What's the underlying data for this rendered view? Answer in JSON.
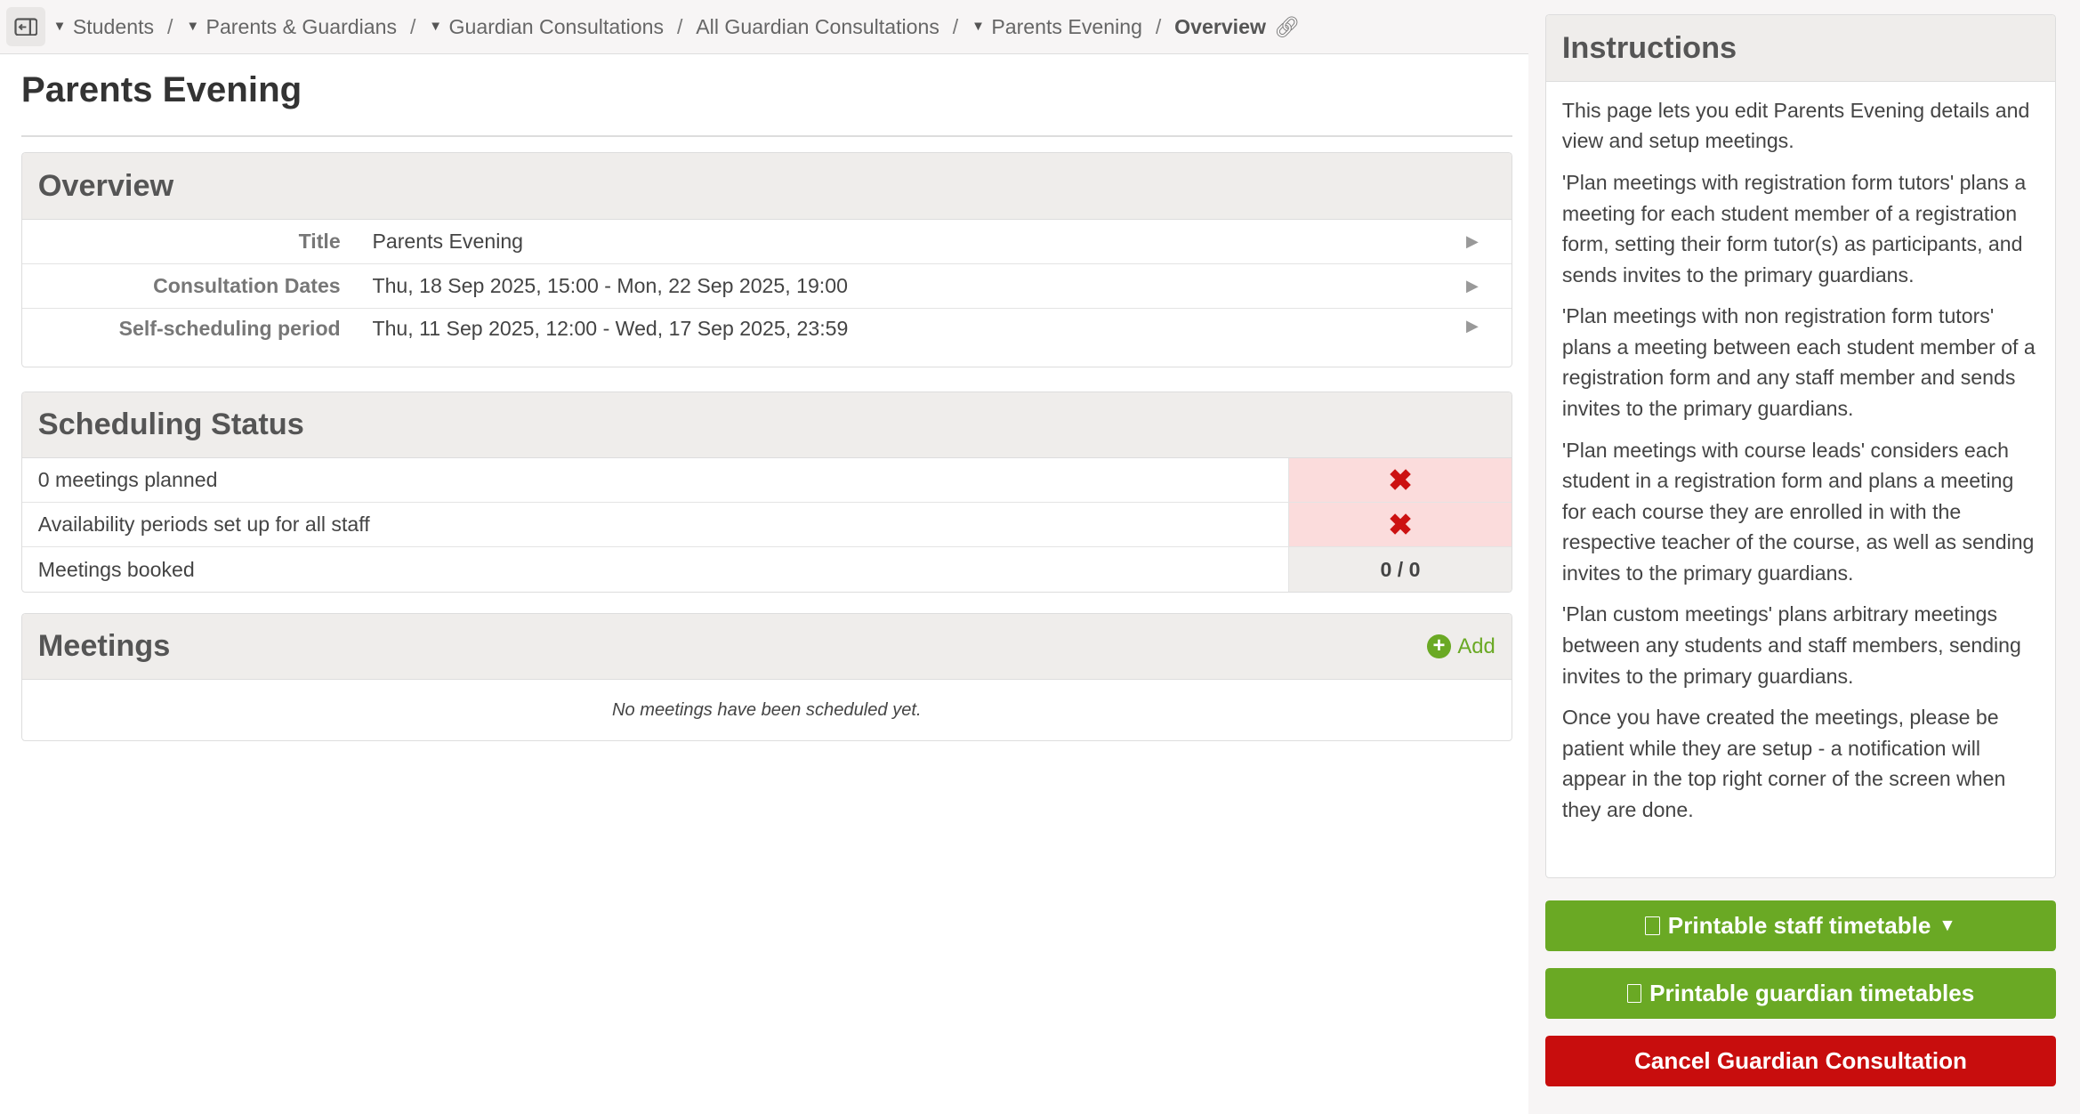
{
  "breadcrumb": {
    "items": [
      "Students",
      "Parents & Guardians",
      "Guardian Consultations",
      "All Guardian Consultations",
      "Parents Evening"
    ],
    "current": "Overview"
  },
  "page_title": "Parents Evening",
  "overview": {
    "heading": "Overview",
    "rows": [
      {
        "label": "Title",
        "value": "Parents Evening"
      },
      {
        "label": "Consultation Dates",
        "value": "Thu, 18 Sep 2025, 15:00 - Mon, 22 Sep 2025, 19:00"
      },
      {
        "label": "Self-scheduling period",
        "value": "Thu, 11 Sep 2025, 12:00 - Wed, 17 Sep 2025, 23:59"
      }
    ]
  },
  "scheduling": {
    "heading": "Scheduling Status",
    "rows": [
      {
        "label": "0 meetings planned",
        "status": "✖"
      },
      {
        "label": "Availability periods set up for all staff",
        "status": "✖"
      },
      {
        "label": "Meetings booked",
        "status": "0 / 0"
      }
    ]
  },
  "meetings": {
    "heading": "Meetings",
    "add_label": "Add",
    "empty": "No meetings have been scheduled yet."
  },
  "instructions": {
    "heading": "Instructions",
    "paragraphs": [
      "This page lets you edit Parents Evening details and view and setup meetings.",
      "'Plan meetings with registration form tutors' plans a meeting for each student member of a registration form, setting their form tutor(s) as participants, and sends invites to the primary guardians.",
      "'Plan meetings with non registration form tutors' plans a meeting between each student member of a registration form and any staff member and sends invites to the primary guardians.",
      "'Plan meetings with course leads' considers each student in a registration form and plans a meeting for each course they are enrolled in with the respective teacher of the course, as well as sending invites to the primary guardians.",
      "'Plan custom meetings' plans arbitrary meetings between any students and staff members, sending invites to the primary guardians.",
      "Once you have created the meetings, please be patient while they are setup - a notification will appear in the top right corner of the screen when they are done."
    ]
  },
  "buttons": {
    "staff_timetable": "Printable staff timetable",
    "guardian_timetables": "Printable guardian timetables",
    "cancel": "Cancel Guardian Consultation"
  },
  "colors": {
    "green": "#6aa924",
    "red": "#c80d0d",
    "error_bg": "#fbdcdc"
  }
}
